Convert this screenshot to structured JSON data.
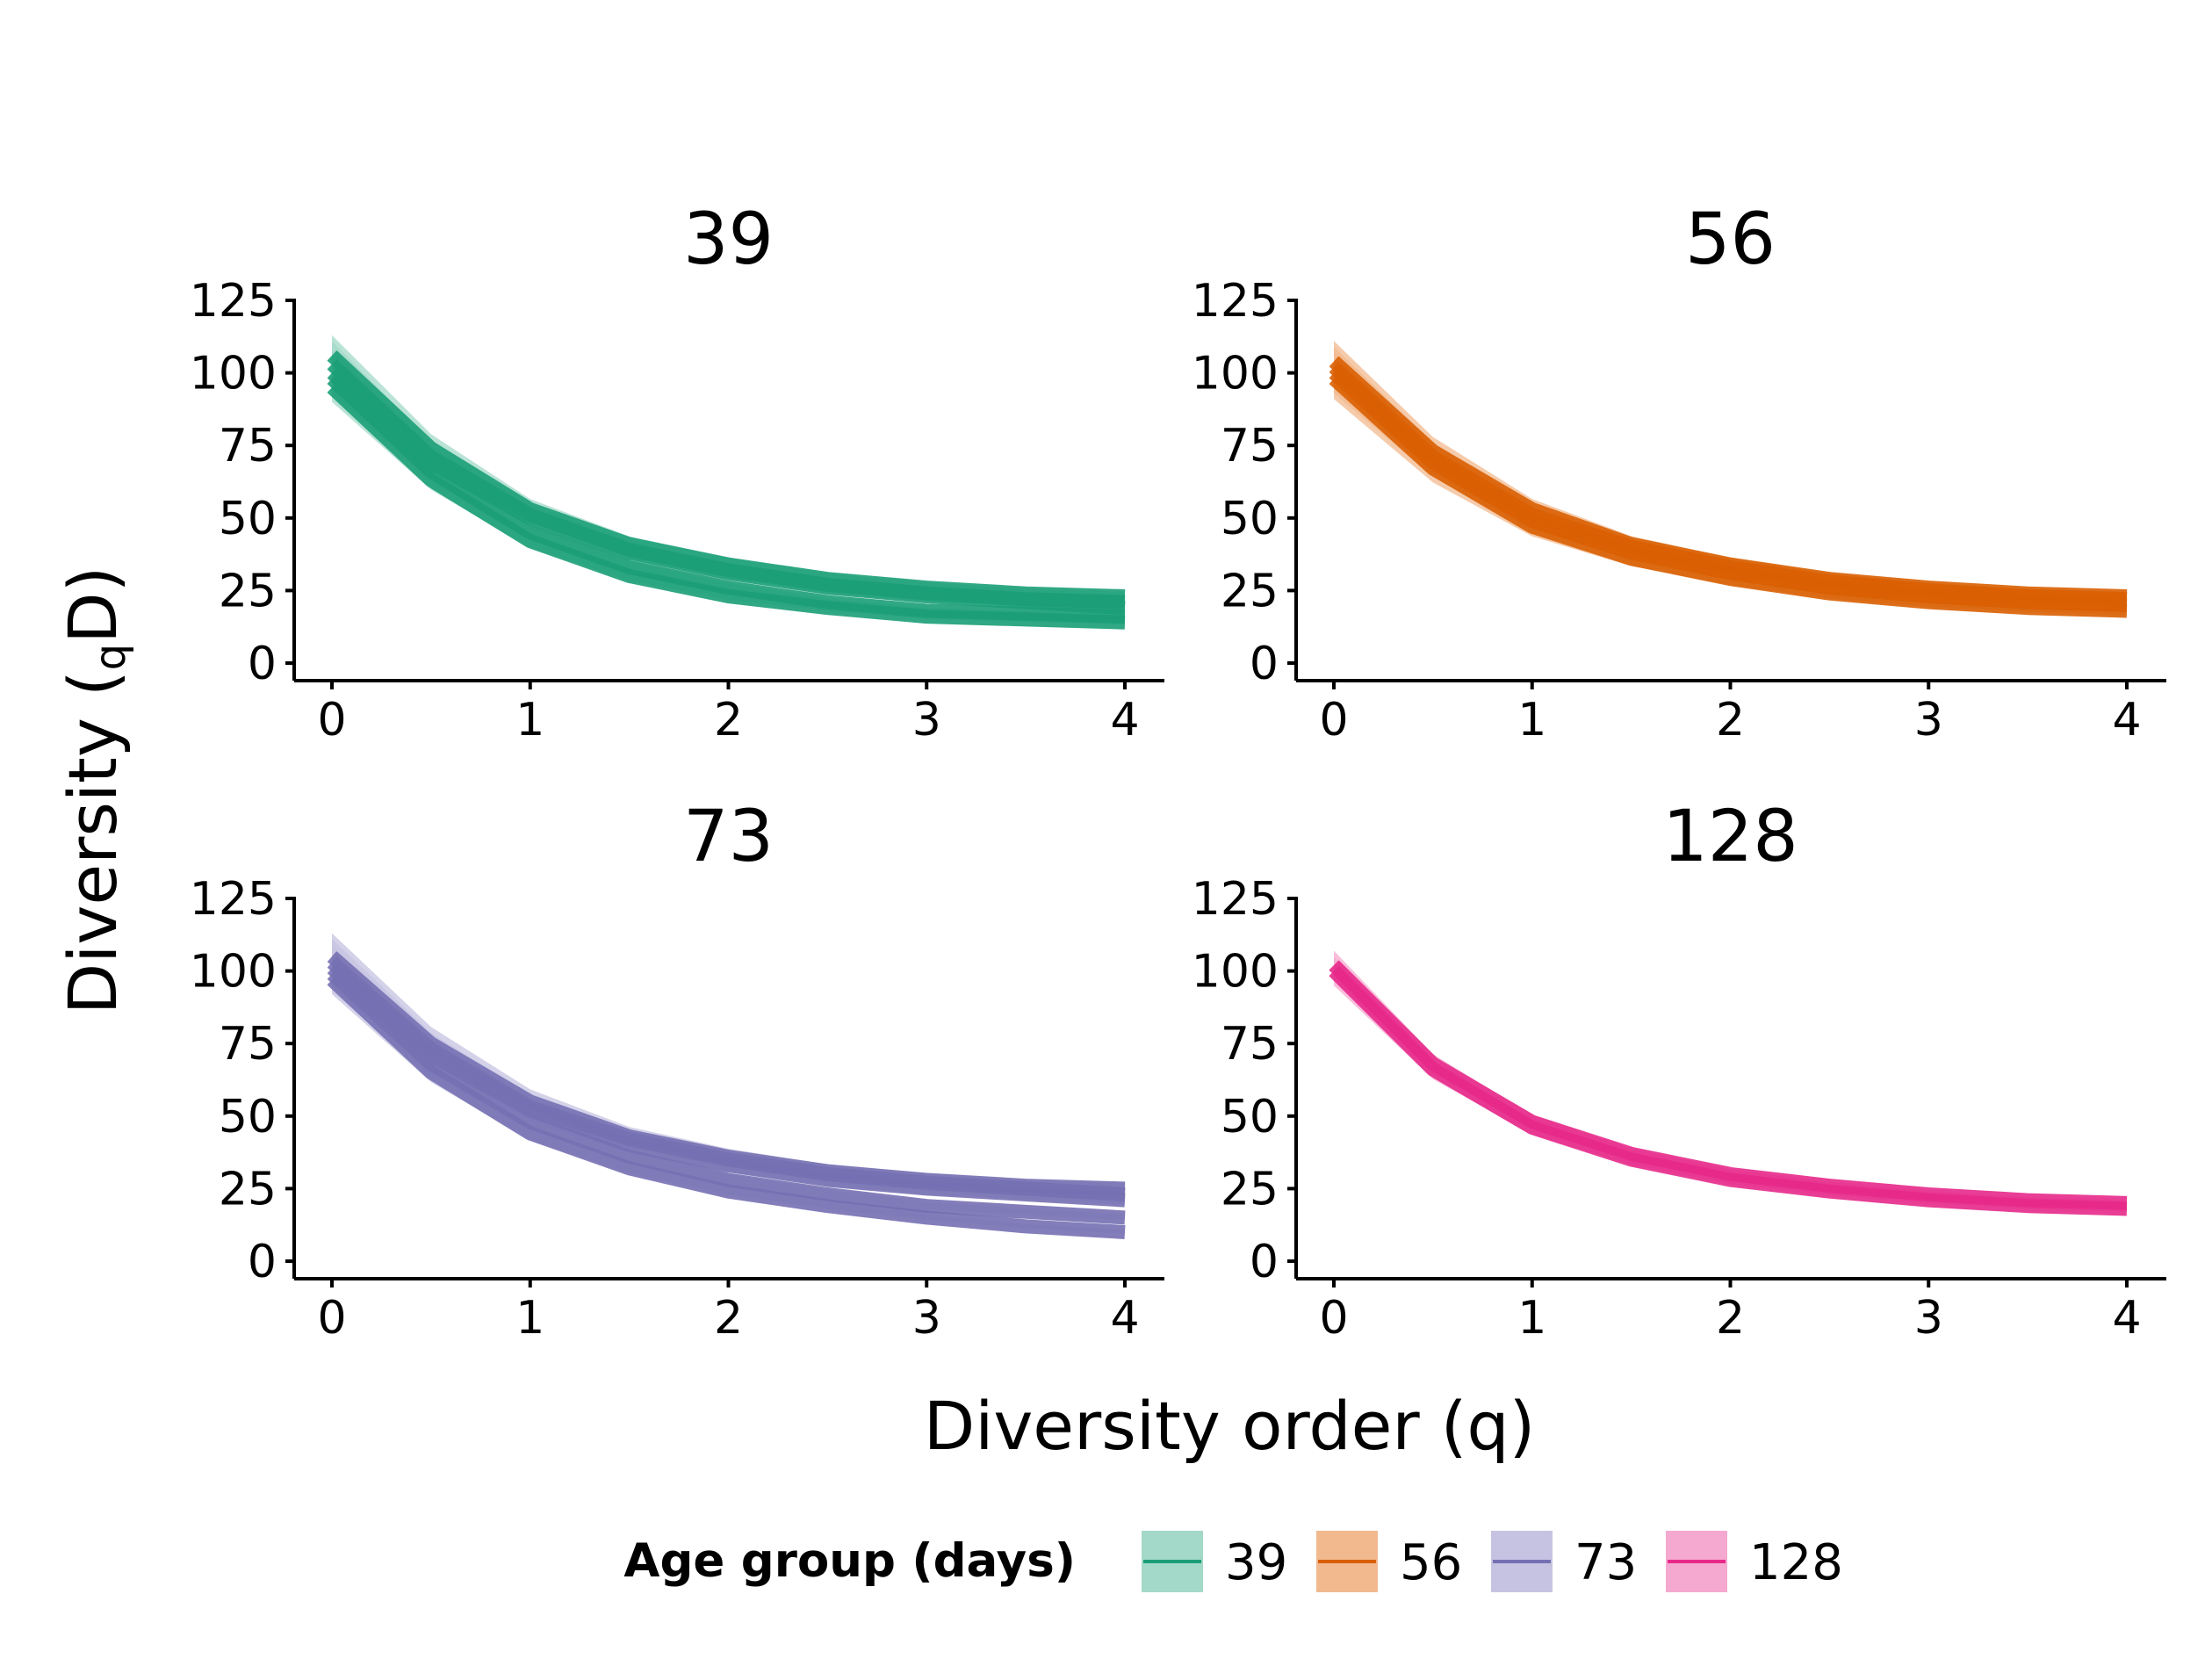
{
  "chart_data": {
    "type": "line",
    "xlabel": "Diversity order (q)",
    "ylabel": {
      "main": "Diversity (",
      "sub": "q",
      "tail": "D)"
    },
    "xlim": [
      0,
      4
    ],
    "ylim": [
      0,
      125
    ],
    "xticks": [
      "0",
      "1",
      "2",
      "3",
      "4"
    ],
    "yticks": [
      "0",
      "25",
      "50",
      "75",
      "100",
      "125"
    ],
    "grid": false,
    "legend": {
      "title": "Age group (days)",
      "position": "bottom",
      "entries": [
        {
          "label": "39",
          "color": "#1b9e77"
        },
        {
          "label": "56",
          "color": "#d95f02"
        },
        {
          "label": "73",
          "color": "#7570b3"
        },
        {
          "label": "128",
          "color": "#e7298a"
        }
      ]
    },
    "panels": [
      {
        "title": "39",
        "color": "#1b9e77",
        "fill": "#a3d9c8",
        "x": [
          0,
          0.5,
          1,
          1.5,
          2,
          2.5,
          3,
          3.5,
          4
        ],
        "series": [
          {
            "values": [
              106,
              74,
              53,
              41,
              34,
              29,
              26,
              24,
              23
            ],
            "band": [
              98,
              113
            ]
          },
          {
            "values": [
              103,
              71,
              51,
              39,
              32,
              27,
              24,
              22,
              21
            ],
            "band": [
              95,
              111
            ]
          },
          {
            "values": [
              100,
              69,
              50,
              38,
              31,
              26,
              23,
              21,
              19
            ],
            "band": [
              92,
              108
            ]
          },
          {
            "values": [
              98,
              66,
              45,
              33,
              26,
              21,
              18,
              17,
              16
            ],
            "band": [
              92,
              104
            ]
          },
          {
            "values": [
              95,
              63,
              42,
              30,
              23,
              19,
              16,
              15,
              14
            ],
            "band": [
              90,
              101
            ]
          }
        ]
      },
      {
        "title": "56",
        "color": "#d95f02",
        "fill": "#f2b98f",
        "x": [
          0,
          0.5,
          1,
          1.5,
          2,
          2.5,
          3,
          3.5,
          4
        ],
        "series": [
          {
            "values": [
              104,
              73,
              53,
              41,
              34,
              29,
              26,
              24,
              23
            ],
            "band": [
              97,
              111
            ]
          },
          {
            "values": [
              102,
              71,
              51,
              40,
              33,
              28,
              25,
              23,
              22
            ],
            "band": [
              95,
              109
            ]
          },
          {
            "values": [
              100,
              69,
              49,
              38,
              31,
              26,
              23,
              21,
              20
            ],
            "band": [
              93,
              107
            ]
          },
          {
            "values": [
              98,
              67,
              47,
              36,
              29,
              24,
              21,
              19,
              18
            ],
            "band": [
              91,
              105
            ]
          }
        ]
      },
      {
        "title": "73",
        "color": "#7570b3",
        "fill": "#c6c3e2",
        "x": [
          0,
          0.5,
          1,
          1.5,
          2,
          2.5,
          3,
          3.5,
          4
        ],
        "series": [
          {
            "values": [
              105,
              75,
              55,
              43,
              36,
              31,
              28,
              26,
              25
            ],
            "band": [
              98,
              113
            ]
          },
          {
            "values": [
              103,
              73,
              53,
              42,
              35,
              30,
              27,
              25,
              23
            ],
            "band": [
              96,
              111
            ]
          },
          {
            "values": [
              101,
              71,
              52,
              40,
              33,
              28,
              25,
              23,
              21
            ],
            "band": [
              94,
              109
            ]
          },
          {
            "values": [
              99,
              68,
              48,
              36,
              28,
              23,
              19,
              17,
              15
            ],
            "band": [
              93,
              106
            ]
          },
          {
            "values": [
              97,
              65,
              44,
              32,
              24,
              19,
              15,
              12,
              10
            ],
            "band": [
              92,
              104
            ]
          }
        ]
      },
      {
        "title": "128",
        "color": "#e7298a",
        "fill": "#f5a8d0",
        "x": [
          0,
          0.5,
          1,
          1.5,
          2,
          2.5,
          3,
          3.5,
          4
        ],
        "series": [
          {
            "values": [
              102,
              68,
              48,
              37,
              30,
              26,
              23,
              21,
              20
            ],
            "band": [
              97,
              107
            ]
          },
          {
            "values": [
              100,
              66,
              46,
              35,
              28,
              24,
              21,
              19,
              18
            ],
            "band": [
              95,
              105
            ]
          }
        ]
      }
    ]
  }
}
